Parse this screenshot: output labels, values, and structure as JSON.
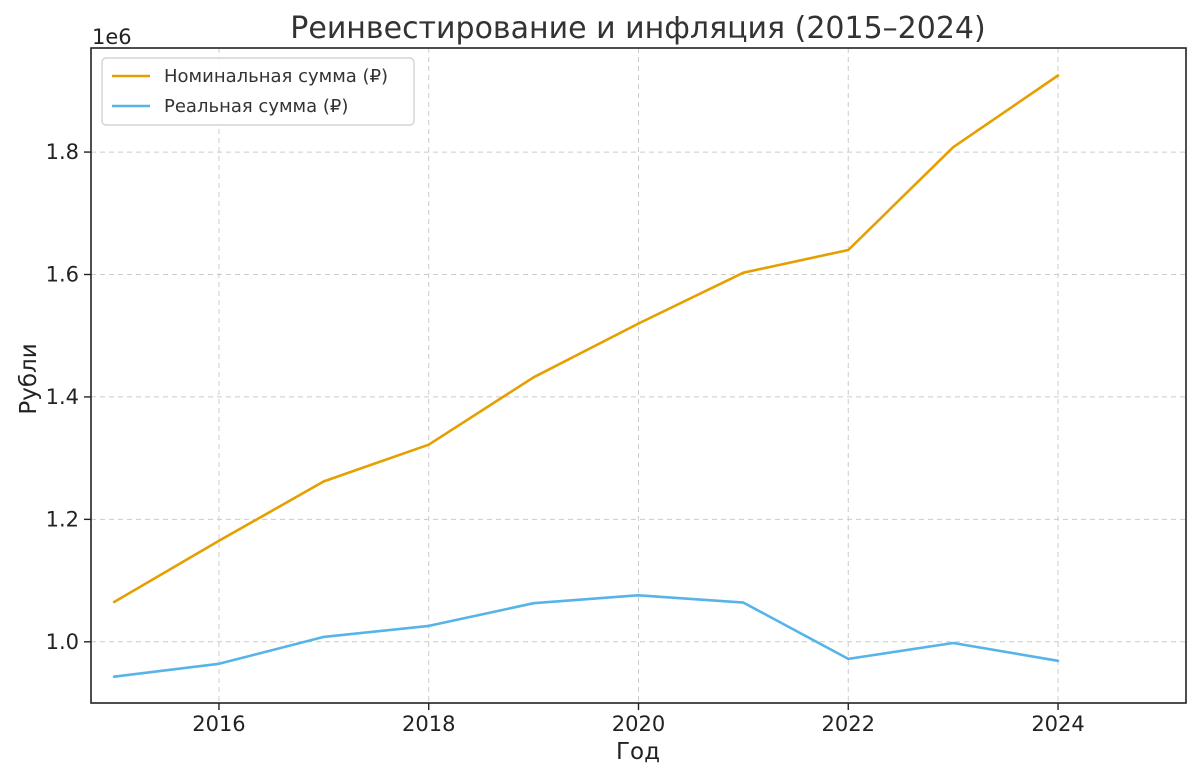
{
  "chart_data": {
    "type": "line",
    "title": "Реинвестирование и инфляция (2015–2024)",
    "xlabel": "Год",
    "ylabel": "Рубли",
    "y_offset_label": "1e6",
    "x": [
      2015,
      2016,
      2017,
      2018,
      2019,
      2020,
      2021,
      2022,
      2023,
      2024
    ],
    "xlim": [
      2014.78,
      2025.22
    ],
    "ylim": [
      0.9,
      1.97
    ],
    "x_ticks": [
      2016,
      2018,
      2020,
      2022,
      2024
    ],
    "x_tick_labels": [
      "2016",
      "2018",
      "2020",
      "2022",
      "2024"
    ],
    "y_ticks": [
      1.0,
      1.2,
      1.4,
      1.6,
      1.8
    ],
    "y_tick_labels": [
      "1.0",
      "1.2",
      "1.4",
      "1.6",
      "1.8"
    ],
    "grid": true,
    "legend_position": "top-left",
    "series": [
      {
        "name": "Номинальная сумма (₽)",
        "color": "#E69F00",
        "values": [
          1.065,
          1.165,
          1.262,
          1.322,
          1.432,
          1.52,
          1.603,
          1.64,
          1.808,
          1.925
        ]
      },
      {
        "name": "Реальная сумма (₽)",
        "color": "#56B4E9",
        "values": [
          0.943,
          0.964,
          1.008,
          1.026,
          1.063,
          1.076,
          1.064,
          0.972,
          0.998,
          0.969
        ]
      }
    ]
  }
}
